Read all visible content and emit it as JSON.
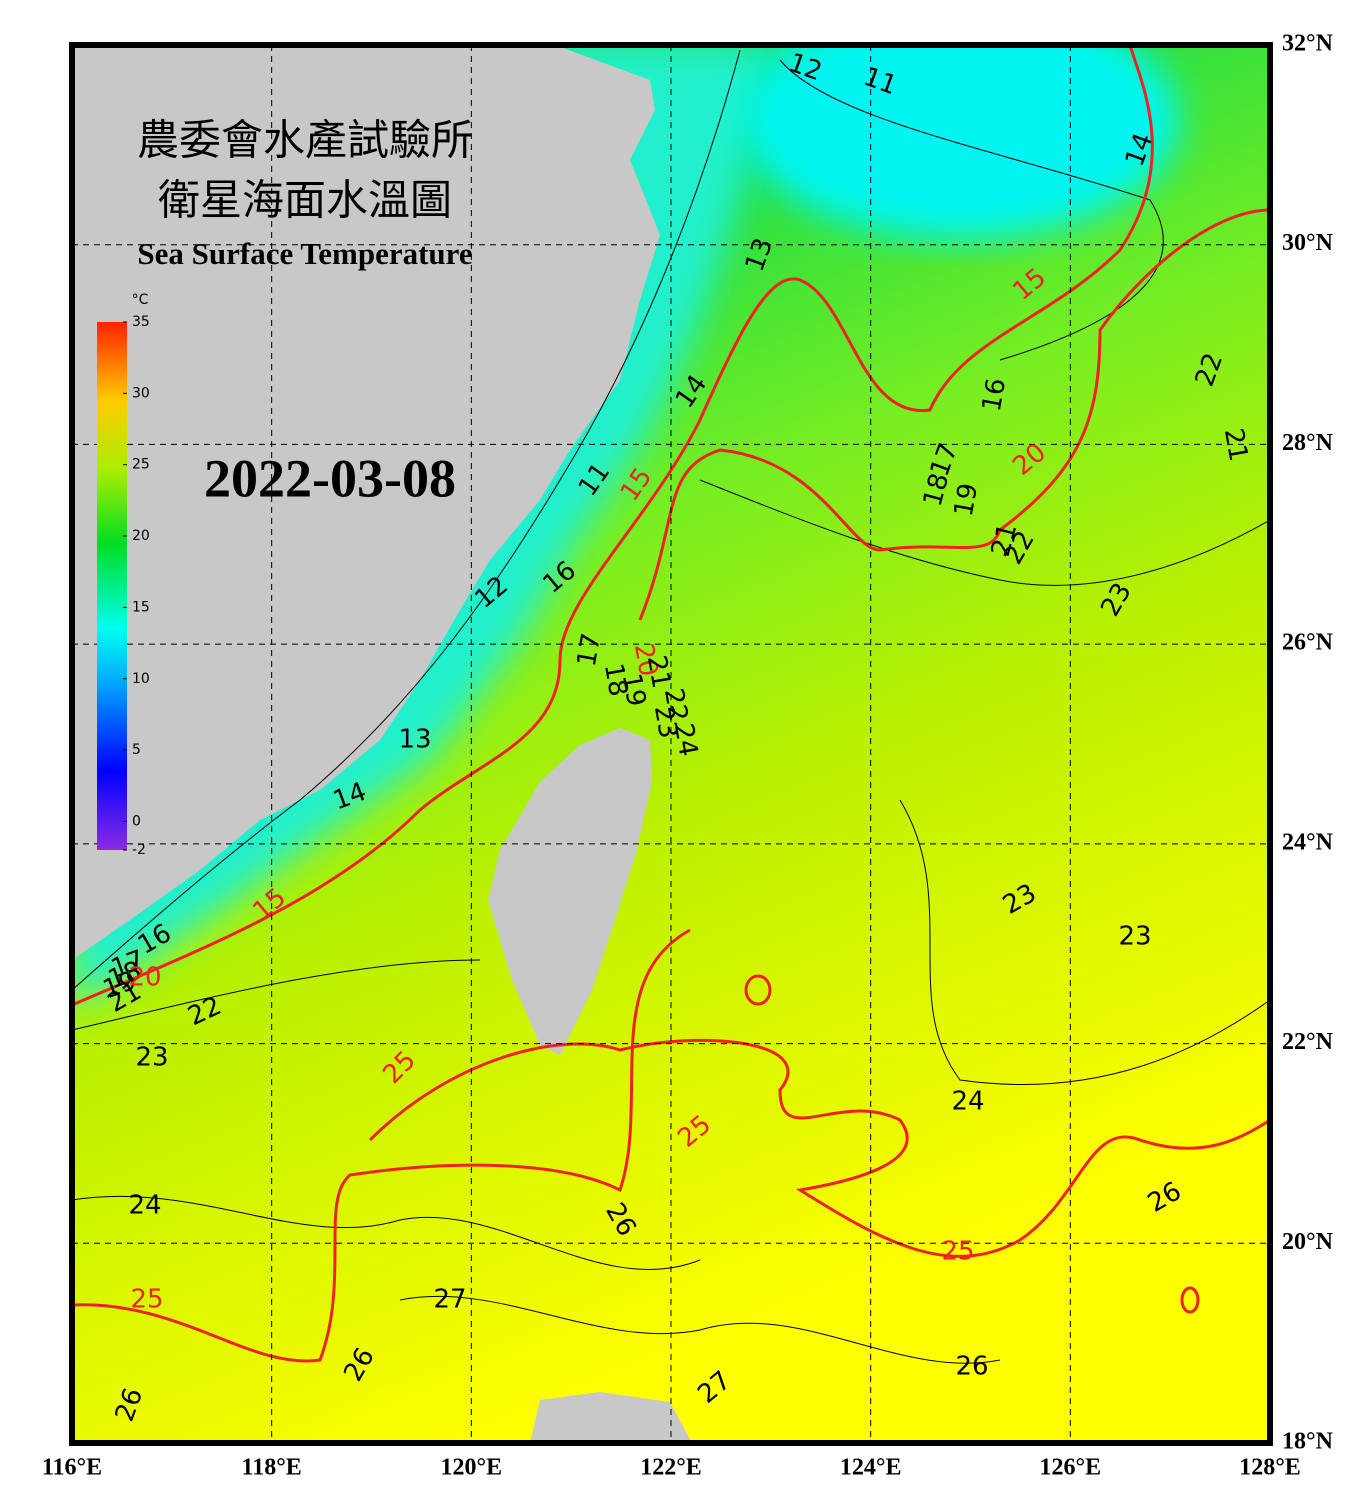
{
  "header": {
    "title_lines": [
      "農委會水產試驗所",
      "衛星海面水溫圖"
    ],
    "subtitle": "Sea Surface Temperature",
    "date": "2022-03-08"
  },
  "colorbar": {
    "unit": "°C",
    "ylim": [
      -2,
      35
    ],
    "yticks": [
      -2,
      0,
      5,
      10,
      15,
      20,
      25,
      30,
      35
    ]
  },
  "map": {
    "xlim": [
      116,
      128
    ],
    "ylim": [
      18,
      32
    ],
    "xticks": [
      {
        "value": 116,
        "label": "116°E"
      },
      {
        "value": 118,
        "label": "118°E"
      },
      {
        "value": 120,
        "label": "120°E"
      },
      {
        "value": 122,
        "label": "122°E"
      },
      {
        "value": 124,
        "label": "124°E"
      },
      {
        "value": 126,
        "label": "126°E"
      },
      {
        "value": 128,
        "label": "128°E"
      }
    ],
    "yticks": [
      {
        "value": 18,
        "label": "18°N"
      },
      {
        "value": 20,
        "label": "20°N"
      },
      {
        "value": 22,
        "label": "22°N"
      },
      {
        "value": 24,
        "label": "24°N"
      },
      {
        "value": 26,
        "label": "26°N"
      },
      {
        "value": 28,
        "label": "28°N"
      },
      {
        "value": 30,
        "label": "30°N"
      },
      {
        "value": 32,
        "label": "32°N"
      }
    ],
    "contour_labels": [
      12,
      11,
      14,
      13,
      15,
      22,
      16,
      14,
      17,
      21,
      20,
      18,
      19,
      11,
      15,
      21,
      22,
      16,
      12,
      23,
      17,
      18,
      19,
      20,
      21,
      22,
      23,
      24,
      13,
      14,
      15,
      16,
      17,
      18,
      19,
      20,
      21,
      22,
      23,
      23,
      23,
      25,
      25,
      24,
      24,
      26,
      26,
      25,
      25,
      27,
      26,
      26,
      27,
      26
    ]
  }
}
